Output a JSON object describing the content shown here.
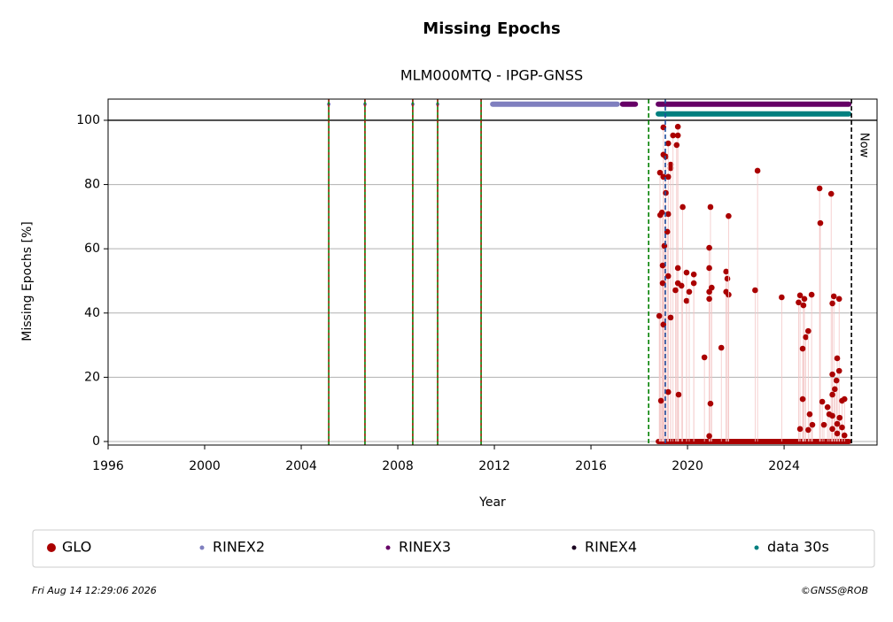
{
  "chart_data": {
    "type": "scatter",
    "title": "Missing Epochs",
    "subtitle": "MLM000MTQ - IPGP-GNSS",
    "xlabel": "Year",
    "ylabel": "Missing Epochs [%]",
    "xlim": [
      1996,
      2027.85
    ],
    "ylim": [
      -1.1,
      106.6
    ],
    "xticks": [
      1996,
      2000,
      2004,
      2008,
      2012,
      2016,
      2020,
      2024
    ],
    "yticks": [
      0,
      20,
      40,
      60,
      80,
      100
    ],
    "grid": true,
    "hlines": [
      100
    ],
    "vlines": [
      {
        "x": 2005.14,
        "color": "#008000",
        "dash": false,
        "overlay": "#cc0000"
      },
      {
        "x": 2006.64,
        "color": "#008000",
        "dash": false,
        "overlay": "#cc0000"
      },
      {
        "x": 2008.62,
        "color": "#008000",
        "dash": false,
        "overlay": "#cc0000"
      },
      {
        "x": 2009.65,
        "color": "#008000",
        "dash": false,
        "overlay": "#cc0000"
      },
      {
        "x": 2011.45,
        "color": "#008000",
        "dash": false,
        "overlay": "#cc0000"
      },
      {
        "x": 2018.39,
        "color": "#008000",
        "dash": true
      },
      {
        "x": 2019.08,
        "color": "#1f4e9f",
        "dash": true
      },
      {
        "x": 2026.79,
        "color": "#000000",
        "dash": true,
        "label": "Now"
      }
    ],
    "series": [
      {
        "name": "GLO",
        "color": "#aa0000",
        "level": 0,
        "spans": [
          [
            2018.68,
            2026.79
          ]
        ],
        "x": [
          2019.0,
          2018.86,
          2019.0,
          2019.1,
          2019.3,
          2019.3,
          2019.2,
          2019.4,
          2019.6,
          2019.6,
          2019.55,
          2019.0,
          2019.2,
          2018.94,
          2018.87,
          2019.2,
          2019.1,
          2019.16,
          2019.8,
          2019.04,
          2018.97,
          2018.97,
          2019.2,
          2019.6,
          2019.6,
          2019.5,
          2019.75,
          2019.96,
          2019.96,
          2020.07,
          2020.26,
          2020.26,
          2018.83,
          2019.3,
          2019.0,
          2018.9,
          2019.2,
          2019.63,
          2020.7,
          2020.95,
          2020.9,
          2020.9,
          2021.0,
          2020.9,
          2020.9,
          2020.95,
          2020.9,
          2021.4,
          2021.6,
          2021.65,
          2021.6,
          2021.7,
          2021.7,
          2022.9,
          2022.8,
          2023.9,
          2024.66,
          2024.84,
          2024.6,
          2024.8,
          2025.14,
          2024.77,
          2024.9,
          2025.0,
          2024.77,
          2024.66,
          2025.06,
          2025.17,
          2025.0,
          2025.47,
          2025.95,
          2025.5,
          2026.06,
          2026.28,
          2026.0,
          2026.2,
          2026.28,
          2026.0,
          2026.17,
          2026.1,
          2026.0,
          2026.4,
          2026.5,
          2025.58,
          2025.8,
          2025.87,
          2026.0,
          2026.3,
          2026.2,
          2025.65,
          2026.0,
          2026.4,
          2026.2,
          2026.5
        ],
        "values": [
          97.8,
          83.7,
          89.3,
          88.7,
          86.2,
          85.1,
          92.8,
          95.3,
          98,
          95.3,
          92.3,
          82.4,
          82.4,
          71.3,
          70.5,
          70.8,
          77.4,
          65.3,
          73,
          60.9,
          54.8,
          49.3,
          51.5,
          54,
          49.3,
          47.1,
          48.5,
          52.6,
          43.8,
          46.6,
          52,
          49.3,
          39.1,
          38.6,
          36.4,
          12.7,
          15.4,
          14.6,
          26.2,
          73,
          60.3,
          54,
          47.9,
          46.6,
          44.4,
          11.8,
          1.7,
          29.2,
          52.9,
          50.7,
          46.6,
          45.7,
          70.2,
          84.3,
          47.1,
          44.9,
          45.5,
          44.4,
          43.3,
          42.4,
          45.7,
          28.9,
          32.5,
          34.4,
          13.2,
          3.9,
          8.5,
          5.2,
          3.6,
          78.8,
          77.1,
          68,
          45.2,
          44.4,
          43,
          25.9,
          22,
          20.9,
          19,
          16.3,
          14.6,
          12.7,
          13.2,
          12.4,
          10.7,
          8.5,
          8,
          7.4,
          5.5,
          5.2,
          3.9,
          4.4,
          2.5,
          1.9
        ]
      },
      {
        "name": "RINEX2",
        "color": "#7f7fbf",
        "level": 105,
        "spans": [
          [
            2011.82,
            2017.2
          ]
        ],
        "x": [
          2005.14,
          2006.64,
          2008.62,
          2009.65
        ],
        "values": [
          105,
          105,
          105,
          105
        ]
      },
      {
        "name": "RINEX3",
        "color": "#660066",
        "level": 105,
        "spans": [
          [
            2017.2,
            2017.95
          ],
          [
            2018.68,
            2026.79
          ]
        ]
      },
      {
        "name": "RINEX4",
        "color": "#1a0020"
      },
      {
        "name": "data 30s",
        "color": "#007f7f",
        "level": 102,
        "spans": [
          [
            2018.68,
            2026.79
          ]
        ]
      }
    ]
  },
  "footer": {
    "timestamp": "Fri Aug 14 12:29:06 2026",
    "credit": "©GNSS@ROB"
  }
}
